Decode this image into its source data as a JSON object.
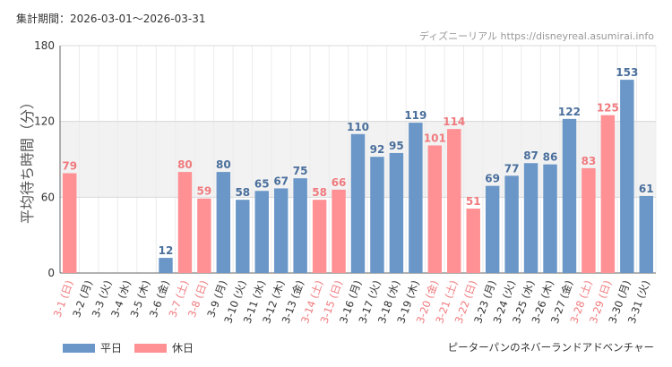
{
  "header": {
    "period_label": "集計期間：",
    "period_start": "2026-03-01",
    "period_sep": "～",
    "period_end": "2026-03-31",
    "source": "ディズニーリアル https://disneyreal.asumirai.info"
  },
  "footer": {
    "attraction": "ピーターパンのネバーランドアドベンチャー"
  },
  "legend": [
    {
      "label": "平日",
      "color": "#6a97c8"
    },
    {
      "label": "休日",
      "color": "#ff9094"
    }
  ],
  "colors": {
    "weekday": "#6a97c8",
    "holiday": "#ff9094",
    "weekday_label": "#4a6f9c",
    "holiday_label": "#f07a7e",
    "weekday_tick": "#333333",
    "holiday_tick": "#f07a7e"
  },
  "chart_data": {
    "type": "bar",
    "title": "",
    "ylabel": "平均待ち時間（分）",
    "xlabel": "",
    "ylim": [
      0,
      180
    ],
    "yticks": [
      0,
      60,
      120,
      180
    ],
    "categories": [
      "3-1 (日)",
      "3-2 (月)",
      "3-3 (火)",
      "3-4 (水)",
      "3-5 (木)",
      "3-6 (金)",
      "3-7 (土)",
      "3-8 (日)",
      "3-9 (月)",
      "3-10 (火)",
      "3-11 (水)",
      "3-12 (木)",
      "3-13 (金)",
      "3-14 (土)",
      "3-15 (日)",
      "3-16 (月)",
      "3-17 (火)",
      "3-18 (水)",
      "3-19 (木)",
      "3-20 (金)",
      "3-21 (土)",
      "3-22 (日)",
      "3-23 (月)",
      "3-24 (火)",
      "3-25 (水)",
      "3-26 (木)",
      "3-27 (金)",
      "3-28 (土)",
      "3-29 (日)",
      "3-30 (月)",
      "3-31 (火)"
    ],
    "values": [
      79,
      null,
      null,
      null,
      null,
      12,
      80,
      59,
      80,
      58,
      65,
      67,
      75,
      58,
      66,
      110,
      92,
      95,
      119,
      101,
      114,
      51,
      69,
      77,
      87,
      86,
      122,
      83,
      125,
      153,
      61
    ],
    "day_type": [
      "holiday",
      "weekday",
      "weekday",
      "weekday",
      "weekday",
      "weekday",
      "holiday",
      "holiday",
      "weekday",
      "weekday",
      "weekday",
      "weekday",
      "weekday",
      "holiday",
      "holiday",
      "weekday",
      "weekday",
      "weekday",
      "weekday",
      "holiday",
      "holiday",
      "holiday",
      "weekday",
      "weekday",
      "weekday",
      "weekday",
      "weekday",
      "holiday",
      "holiday",
      "weekday",
      "weekday"
    ],
    "series": [
      {
        "name": "平日"
      },
      {
        "name": "休日"
      }
    ]
  }
}
